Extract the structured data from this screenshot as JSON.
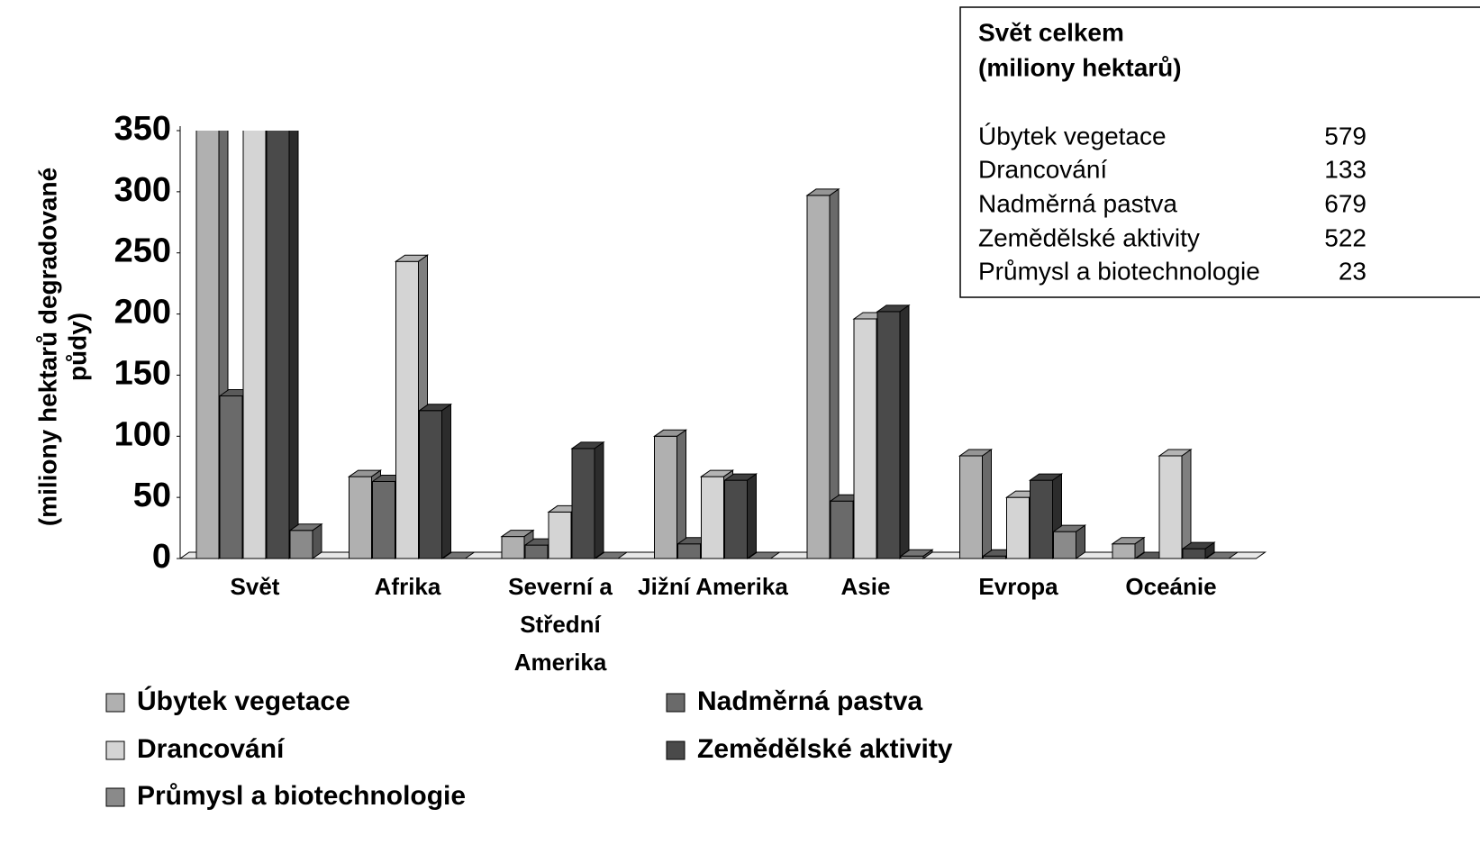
{
  "chart_data": {
    "type": "bar3d",
    "ylabel": [
      "(miliony  hektarů degradované",
      "půdy)"
    ],
    "categories": [
      "Svět",
      "Afrika",
      "Severní a Střední Amerika",
      "Jižní Amerika",
      "Asie",
      "Evropa",
      "Oceánie"
    ],
    "series": [
      {
        "name": "Úbytek vegetace",
        "color": "#b0b0b0",
        "values": [
          579,
          67,
          18,
          100,
          297,
          84,
          12
        ]
      },
      {
        "name": "Nadměrná pastva",
        "color": "#6a6a6a",
        "values": [
          133,
          63,
          11,
          12,
          47,
          2,
          0
        ]
      },
      {
        "name": "Drancování",
        "color": "#d4d4d4",
        "values": [
          679,
          243,
          38,
          67,
          196,
          50,
          84
        ]
      },
      {
        "name": "Zemědělské aktivity",
        "color": "#4a4a4a",
        "values": [
          522,
          121,
          90,
          64,
          202,
          64,
          8
        ]
      },
      {
        "name": "Průmysl a biotechnologie",
        "color": "#8a8a8a",
        "values": [
          23,
          0,
          0,
          0,
          2,
          22,
          0
        ]
      }
    ],
    "ylim": [
      0,
      350
    ],
    "yticks": [
      0,
      50,
      100,
      150,
      200,
      250,
      300,
      350
    ],
    "summary_title": [
      "Svět celkem",
      "(miliony hektarů)"
    ]
  }
}
